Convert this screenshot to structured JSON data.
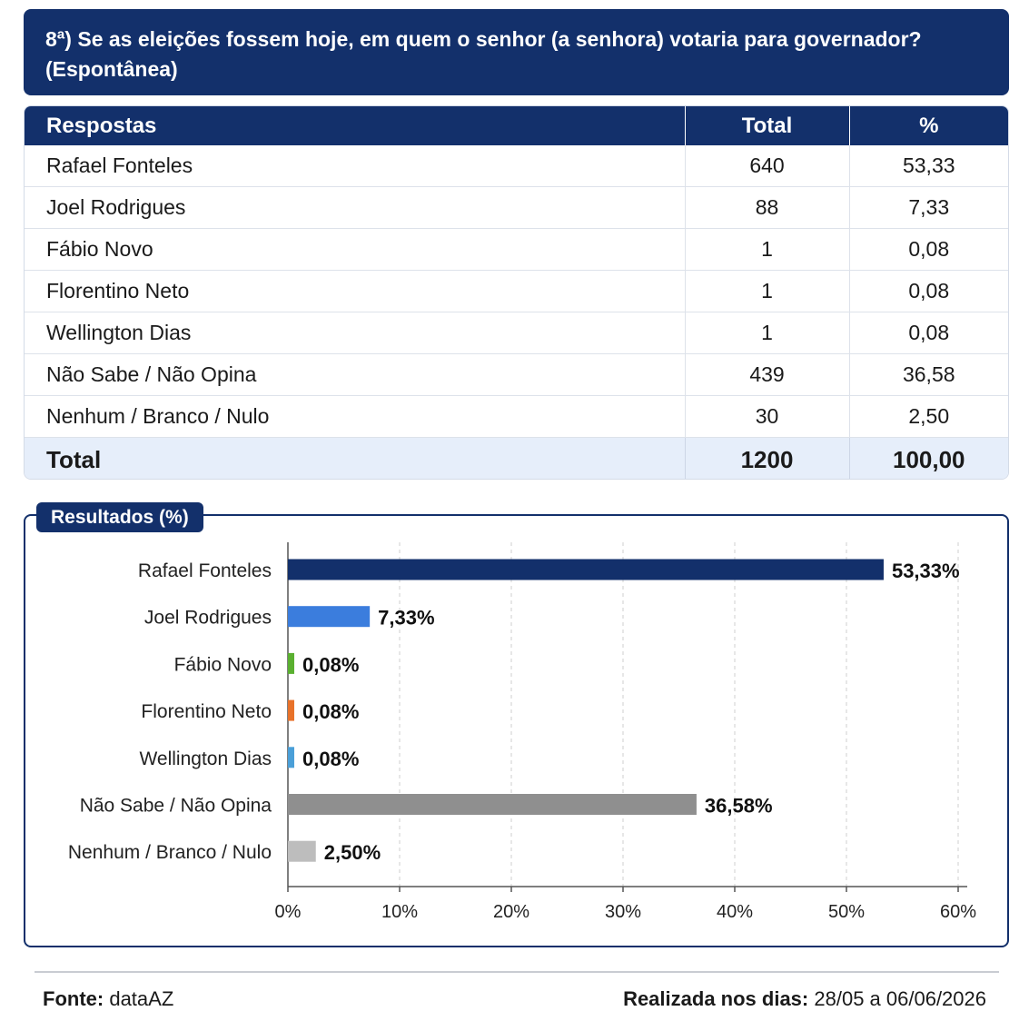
{
  "question": {
    "line1": "8ª) Se as eleições fossem hoje, em quem o senhor (a senhora) votaria para governador?",
    "line2": "(Espontânea)"
  },
  "table": {
    "headers": [
      "Respostas",
      "Total",
      "%"
    ],
    "rows": [
      {
        "name": "Rafael Fonteles",
        "total": "640",
        "pct": "53,33"
      },
      {
        "name": "Joel Rodrigues",
        "total": "88",
        "pct": "7,33"
      },
      {
        "name": "Fábio Novo",
        "total": "1",
        "pct": "0,08"
      },
      {
        "name": "Florentino Neto",
        "total": "1",
        "pct": "0,08"
      },
      {
        "name": "Wellington Dias",
        "total": "1",
        "pct": "0,08"
      },
      {
        "name": "Não Sabe / Não Opina",
        "total": "439",
        "pct": "36,58"
      },
      {
        "name": "Nenhum / Branco / Nulo",
        "total": "30",
        "pct": "2,50"
      }
    ],
    "total_row": {
      "name": "Total",
      "total": "1200",
      "pct": "100,00"
    }
  },
  "chart_title": "Resultados (%)",
  "chart_data": {
    "type": "bar",
    "orientation": "horizontal",
    "categories": [
      "Rafael Fonteles",
      "Joel Rodrigues",
      "Fábio Novo",
      "Florentino Neto",
      "Wellington Dias",
      "Não Sabe / Não Opina",
      "Nenhum / Branco / Nulo"
    ],
    "values": [
      53.33,
      7.33,
      0.08,
      0.08,
      0.08,
      36.58,
      2.5
    ],
    "value_labels": [
      "53,33%",
      "7,33%",
      "0,08%",
      "0,08%",
      "0,08%",
      "36,58%",
      "2,50%"
    ],
    "colors": [
      "#13306b",
      "#3b7ddd",
      "#5ab030",
      "#e8722a",
      "#4a9fd8",
      "#8f8f8f",
      "#bdbdbd"
    ],
    "xlim": [
      0,
      60
    ],
    "xticks": [
      0,
      10,
      20,
      30,
      40,
      50,
      60
    ],
    "xtick_labels": [
      "0%",
      "10%",
      "20%",
      "30%",
      "40%",
      "50%",
      "60%"
    ],
    "grid": "vertical-dashed"
  },
  "footer": {
    "source_label": "Fonte:",
    "source_value": "dataAZ",
    "date_label": "Realizada nos dias:",
    "date_value": "28/05 a 06/06/2026"
  }
}
